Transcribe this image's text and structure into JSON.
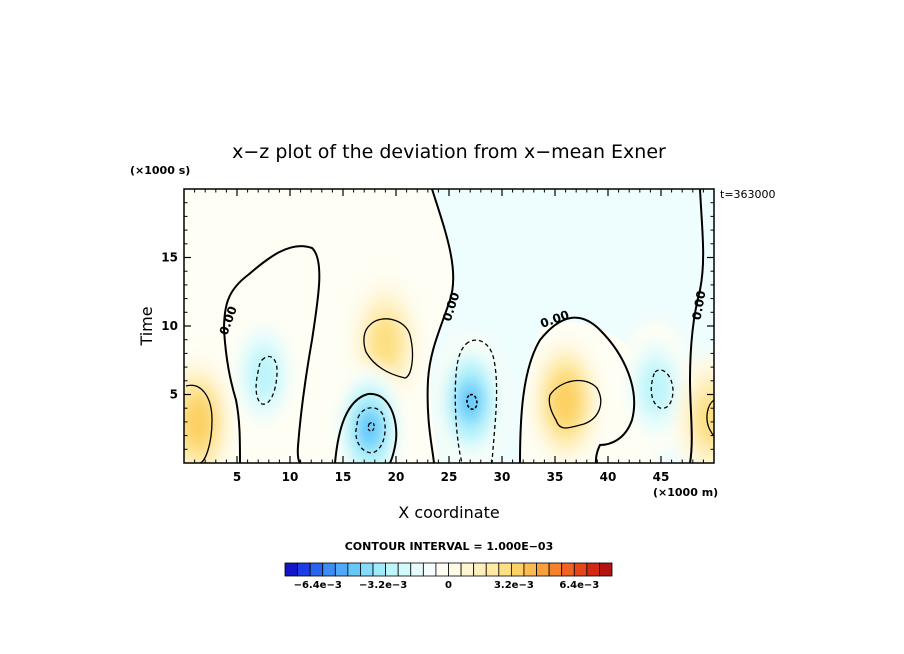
{
  "chart_data": {
    "type": "contour",
    "title": "x−z plot of the deviation from x−mean Exner",
    "xlabel": "X coordinate",
    "ylabel": "Time",
    "x_unit": "(×1000 m)",
    "y_unit": "(×1000 s)",
    "timestamp": "t=363000",
    "xlim": [
      0,
      50
    ],
    "ylim": [
      0,
      20
    ],
    "xticks": [
      5,
      10,
      15,
      20,
      25,
      30,
      35,
      40,
      45
    ],
    "yticks": [
      5,
      10,
      15
    ],
    "contour_interval_text": "CONTOUR INTERVAL = 1.000E−03",
    "contour_interval": 0.001,
    "zero_contour_label": "0.00",
    "colorbar": {
      "range": [
        -0.008,
        0.008
      ],
      "tick_labels": [
        "−6.4e−3",
        "−3.2e−3",
        "0",
        "3.2e−3",
        "6.4e−3"
      ],
      "tick_values": [
        -0.0064,
        -0.0032,
        0,
        0.0032,
        0.0064
      ],
      "colors": [
        "#1414c8",
        "#1e3ce6",
        "#2864f0",
        "#3c8cf5",
        "#50aaf8",
        "#64c8fa",
        "#82dcfa",
        "#a0ebfa",
        "#bef5fa",
        "#d2fafa",
        "#e6fcfc",
        "#f5fefe",
        "#fefef4",
        "#fefae6",
        "#fef5d2",
        "#fef0be",
        "#feeaa0",
        "#fde082",
        "#fcd064",
        "#fbbb50",
        "#f9a03c",
        "#f5822d",
        "#f06423",
        "#e64619",
        "#d22814",
        "#b4140f"
      ]
    },
    "features": [
      {
        "kind": "positive",
        "x": 1.3,
        "y": 3.0,
        "value": 0.003
      },
      {
        "kind": "negative",
        "x": 7.5,
        "y": 6.5,
        "value": -0.002
      },
      {
        "kind": "positive",
        "x": 19.0,
        "y": 8.8,
        "value": 0.002
      },
      {
        "kind": "negative",
        "x": 17.5,
        "y": 2.5,
        "value": -0.004
      },
      {
        "kind": "negative",
        "x": 27.0,
        "y": 4.5,
        "value": -0.004
      },
      {
        "kind": "positive",
        "x": 36.0,
        "y": 4.5,
        "value": 0.003
      },
      {
        "kind": "negative",
        "x": 44.5,
        "y": 5.5,
        "value": -0.002
      },
      {
        "kind": "positive",
        "x": 49.7,
        "y": 3.2,
        "value": 0.002
      }
    ]
  }
}
